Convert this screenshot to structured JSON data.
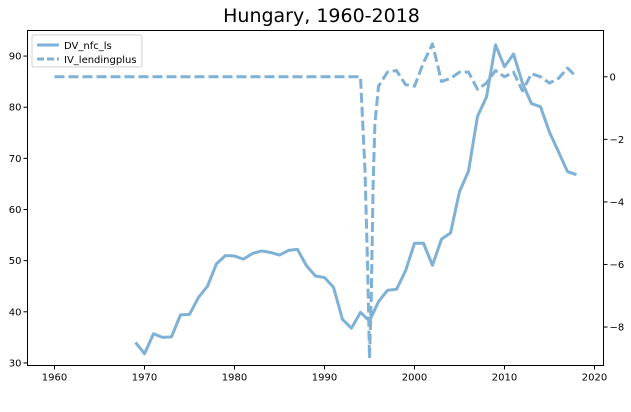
{
  "chart_data": {
    "type": "line",
    "title": "Hungary, 1960-2018",
    "grid": false,
    "legend_position": "top-left",
    "xlim": [
      1957,
      2021
    ],
    "xticks": [
      1960,
      1970,
      1980,
      1990,
      2000,
      2010,
      2020
    ],
    "left_axis": {
      "ylim": [
        29.5,
        95
      ],
      "ticks": [
        30,
        40,
        50,
        60,
        70,
        80,
        90
      ]
    },
    "right_axis": {
      "ylim": [
        -9.23,
        1.48
      ],
      "ticks": [
        0,
        -2,
        -4,
        -6,
        -8
      ]
    },
    "series": [
      {
        "name": "DV_nfc_ls",
        "axis": "left",
        "style": "solid",
        "color": "#7fb1d6",
        "x": [
          1969,
          1970,
          1971,
          1972,
          1973,
          1974,
          1975,
          1976,
          1977,
          1978,
          1979,
          1980,
          1981,
          1982,
          1983,
          1984,
          1985,
          1986,
          1987,
          1988,
          1989,
          1990,
          1991,
          1992,
          1993,
          1994,
          1995,
          1996,
          1997,
          1998,
          1999,
          2000,
          2001,
          2002,
          2003,
          2004,
          2005,
          2006,
          2007,
          2008,
          2009,
          2010,
          2011,
          2012,
          2013,
          2014,
          2015,
          2016,
          2017,
          2018
        ],
        "y": [
          34.0,
          31.8,
          35.7,
          35.0,
          35.1,
          39.4,
          39.5,
          42.8,
          45.0,
          49.4,
          51.0,
          50.9,
          50.3,
          51.4,
          51.9,
          51.6,
          51.1,
          52.0,
          52.2,
          49.0,
          47.0,
          46.7,
          44.8,
          38.5,
          36.8,
          39.9,
          38.2,
          42.0,
          44.2,
          44.4,
          48.0,
          53.4,
          53.4,
          49.1,
          54.2,
          55.4,
          63.5,
          67.5,
          78.2,
          82.0,
          92.2,
          87.9,
          90.4,
          84.7,
          80.7,
          80.1,
          75.1,
          71.3,
          67.4,
          66.8
        ]
      },
      {
        "name": "IV_lendingplus",
        "axis": "right",
        "style": "dashed",
        "color": "#7fb1d6",
        "x": [
          1960,
          1961,
          1962,
          1963,
          1964,
          1965,
          1966,
          1967,
          1968,
          1969,
          1970,
          1971,
          1972,
          1973,
          1974,
          1975,
          1976,
          1977,
          1978,
          1979,
          1980,
          1981,
          1982,
          1983,
          1984,
          1985,
          1986,
          1987,
          1988,
          1989,
          1990,
          1991,
          1992,
          1993,
          1994,
          1994.5,
          1994.8,
          1995,
          1995.2,
          1995.4,
          1995.6,
          1996,
          1997,
          1998,
          1999,
          2000,
          2001,
          2002,
          2003,
          2004,
          2005,
          2006,
          2007,
          2008,
          2009,
          2010,
          2011,
          2012,
          2013,
          2014,
          2015,
          2016,
          2017,
          2018
        ],
        "y": [
          0,
          0,
          0,
          0,
          0,
          0,
          0,
          0,
          0,
          0,
          0,
          0,
          0,
          0,
          0,
          0,
          0,
          0,
          0,
          0,
          0,
          0,
          0,
          0,
          0,
          0,
          0,
          0,
          0,
          0,
          0,
          0,
          0,
          0,
          0,
          -3.0,
          -6.2,
          -9.0,
          -7.0,
          -3.5,
          -1.5,
          -0.3,
          0.15,
          0.2,
          -0.25,
          -0.3,
          0.45,
          1.05,
          -0.15,
          -0.05,
          0.15,
          0.15,
          -0.4,
          -0.2,
          0.2,
          0.0,
          0.15,
          -0.45,
          0.1,
          0.0,
          -0.2,
          -0.05,
          0.28,
          0.0
        ]
      }
    ]
  }
}
